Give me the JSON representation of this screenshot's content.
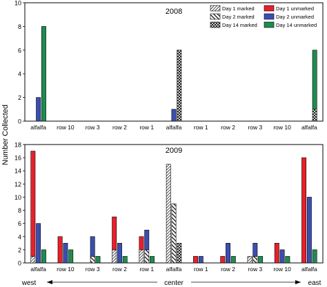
{
  "chart_data": [
    {
      "type": "bar",
      "title": "2008",
      "xlabel": "",
      "ylabel": "Number Collected",
      "ylim": [
        0,
        10
      ],
      "yticks": [
        0,
        2,
        4,
        6,
        8,
        10
      ],
      "categories": [
        "alfalfa",
        "row 10",
        "row 3",
        "row 2",
        "row 1",
        "alfalfa",
        "row 1",
        "row 2",
        "row 3",
        "row 10",
        "alfalfa"
      ],
      "legend_position": "top-right",
      "grid": false,
      "series": [
        {
          "name": "Day 1 unmarked",
          "color": "#e8202a",
          "values": [
            0,
            0,
            0,
            0,
            0,
            0,
            0,
            0,
            0,
            0,
            0
          ]
        },
        {
          "name": "Day 2 unmarked",
          "color": "#3b4fb0",
          "values": [
            2,
            0,
            0,
            0,
            0,
            1,
            0,
            0,
            0,
            0,
            0
          ]
        },
        {
          "name": "Day 14 unmarked",
          "color": "#1f8c50",
          "values": [
            8,
            0,
            0,
            0,
            0,
            0,
            0,
            0,
            0,
            0,
            5
          ]
        },
        {
          "name": "Day 1 marked",
          "color": "#000000",
          "values": [
            0,
            0,
            0,
            0,
            0,
            0,
            0,
            0,
            0,
            0,
            0
          ]
        },
        {
          "name": "Day 2 marked",
          "color": "#000000",
          "values": [
            0,
            0,
            0,
            0,
            0,
            0,
            0,
            0,
            0,
            0,
            0
          ]
        },
        {
          "name": "Day 14 marked",
          "color": "#000000",
          "values": [
            0,
            0,
            0,
            0,
            0,
            6,
            0,
            0,
            0,
            0,
            1
          ]
        }
      ]
    },
    {
      "type": "bar",
      "title": "2009",
      "xlabel": "",
      "ylabel": "Number Collected",
      "ylim": [
        0,
        18
      ],
      "yticks": [
        0,
        2,
        4,
        6,
        8,
        10,
        12,
        14,
        16,
        18
      ],
      "categories": [
        "alfalfa",
        "row 10",
        "row 3",
        "row 2",
        "row 1",
        "alfalfa",
        "row 1",
        "row 2",
        "row 3",
        "row 10",
        "alfalfa"
      ],
      "grid": false,
      "series": [
        {
          "name": "Day 1 unmarked",
          "color": "#e8202a",
          "values": [
            16,
            4,
            0,
            5,
            2,
            0,
            1,
            1,
            0,
            3,
            16
          ]
        },
        {
          "name": "Day 2 unmarked",
          "color": "#3b4fb0",
          "values": [
            6,
            3,
            3,
            3,
            3,
            0,
            1,
            3,
            2,
            2,
            10
          ]
        },
        {
          "name": "Day 14 unmarked",
          "color": "#1f8c50",
          "values": [
            2,
            2,
            1,
            1,
            1,
            0,
            0,
            1,
            1,
            1,
            2
          ]
        },
        {
          "name": "Day 1 marked",
          "color": "#000000",
          "values": [
            1,
            0,
            0,
            2,
            2,
            15,
            0,
            0,
            1,
            0,
            0
          ]
        },
        {
          "name": "Day 2 marked",
          "color": "#000000",
          "values": [
            0,
            0,
            1,
            0,
            2,
            9,
            0,
            0,
            1,
            0,
            0
          ]
        },
        {
          "name": "Day 14 marked",
          "color": "#000000",
          "values": [
            0,
            0,
            0,
            0,
            0,
            3,
            0,
            0,
            0,
            0,
            0
          ]
        }
      ]
    }
  ],
  "direction_labels": {
    "west": "west",
    "center": "center",
    "east": "east"
  }
}
